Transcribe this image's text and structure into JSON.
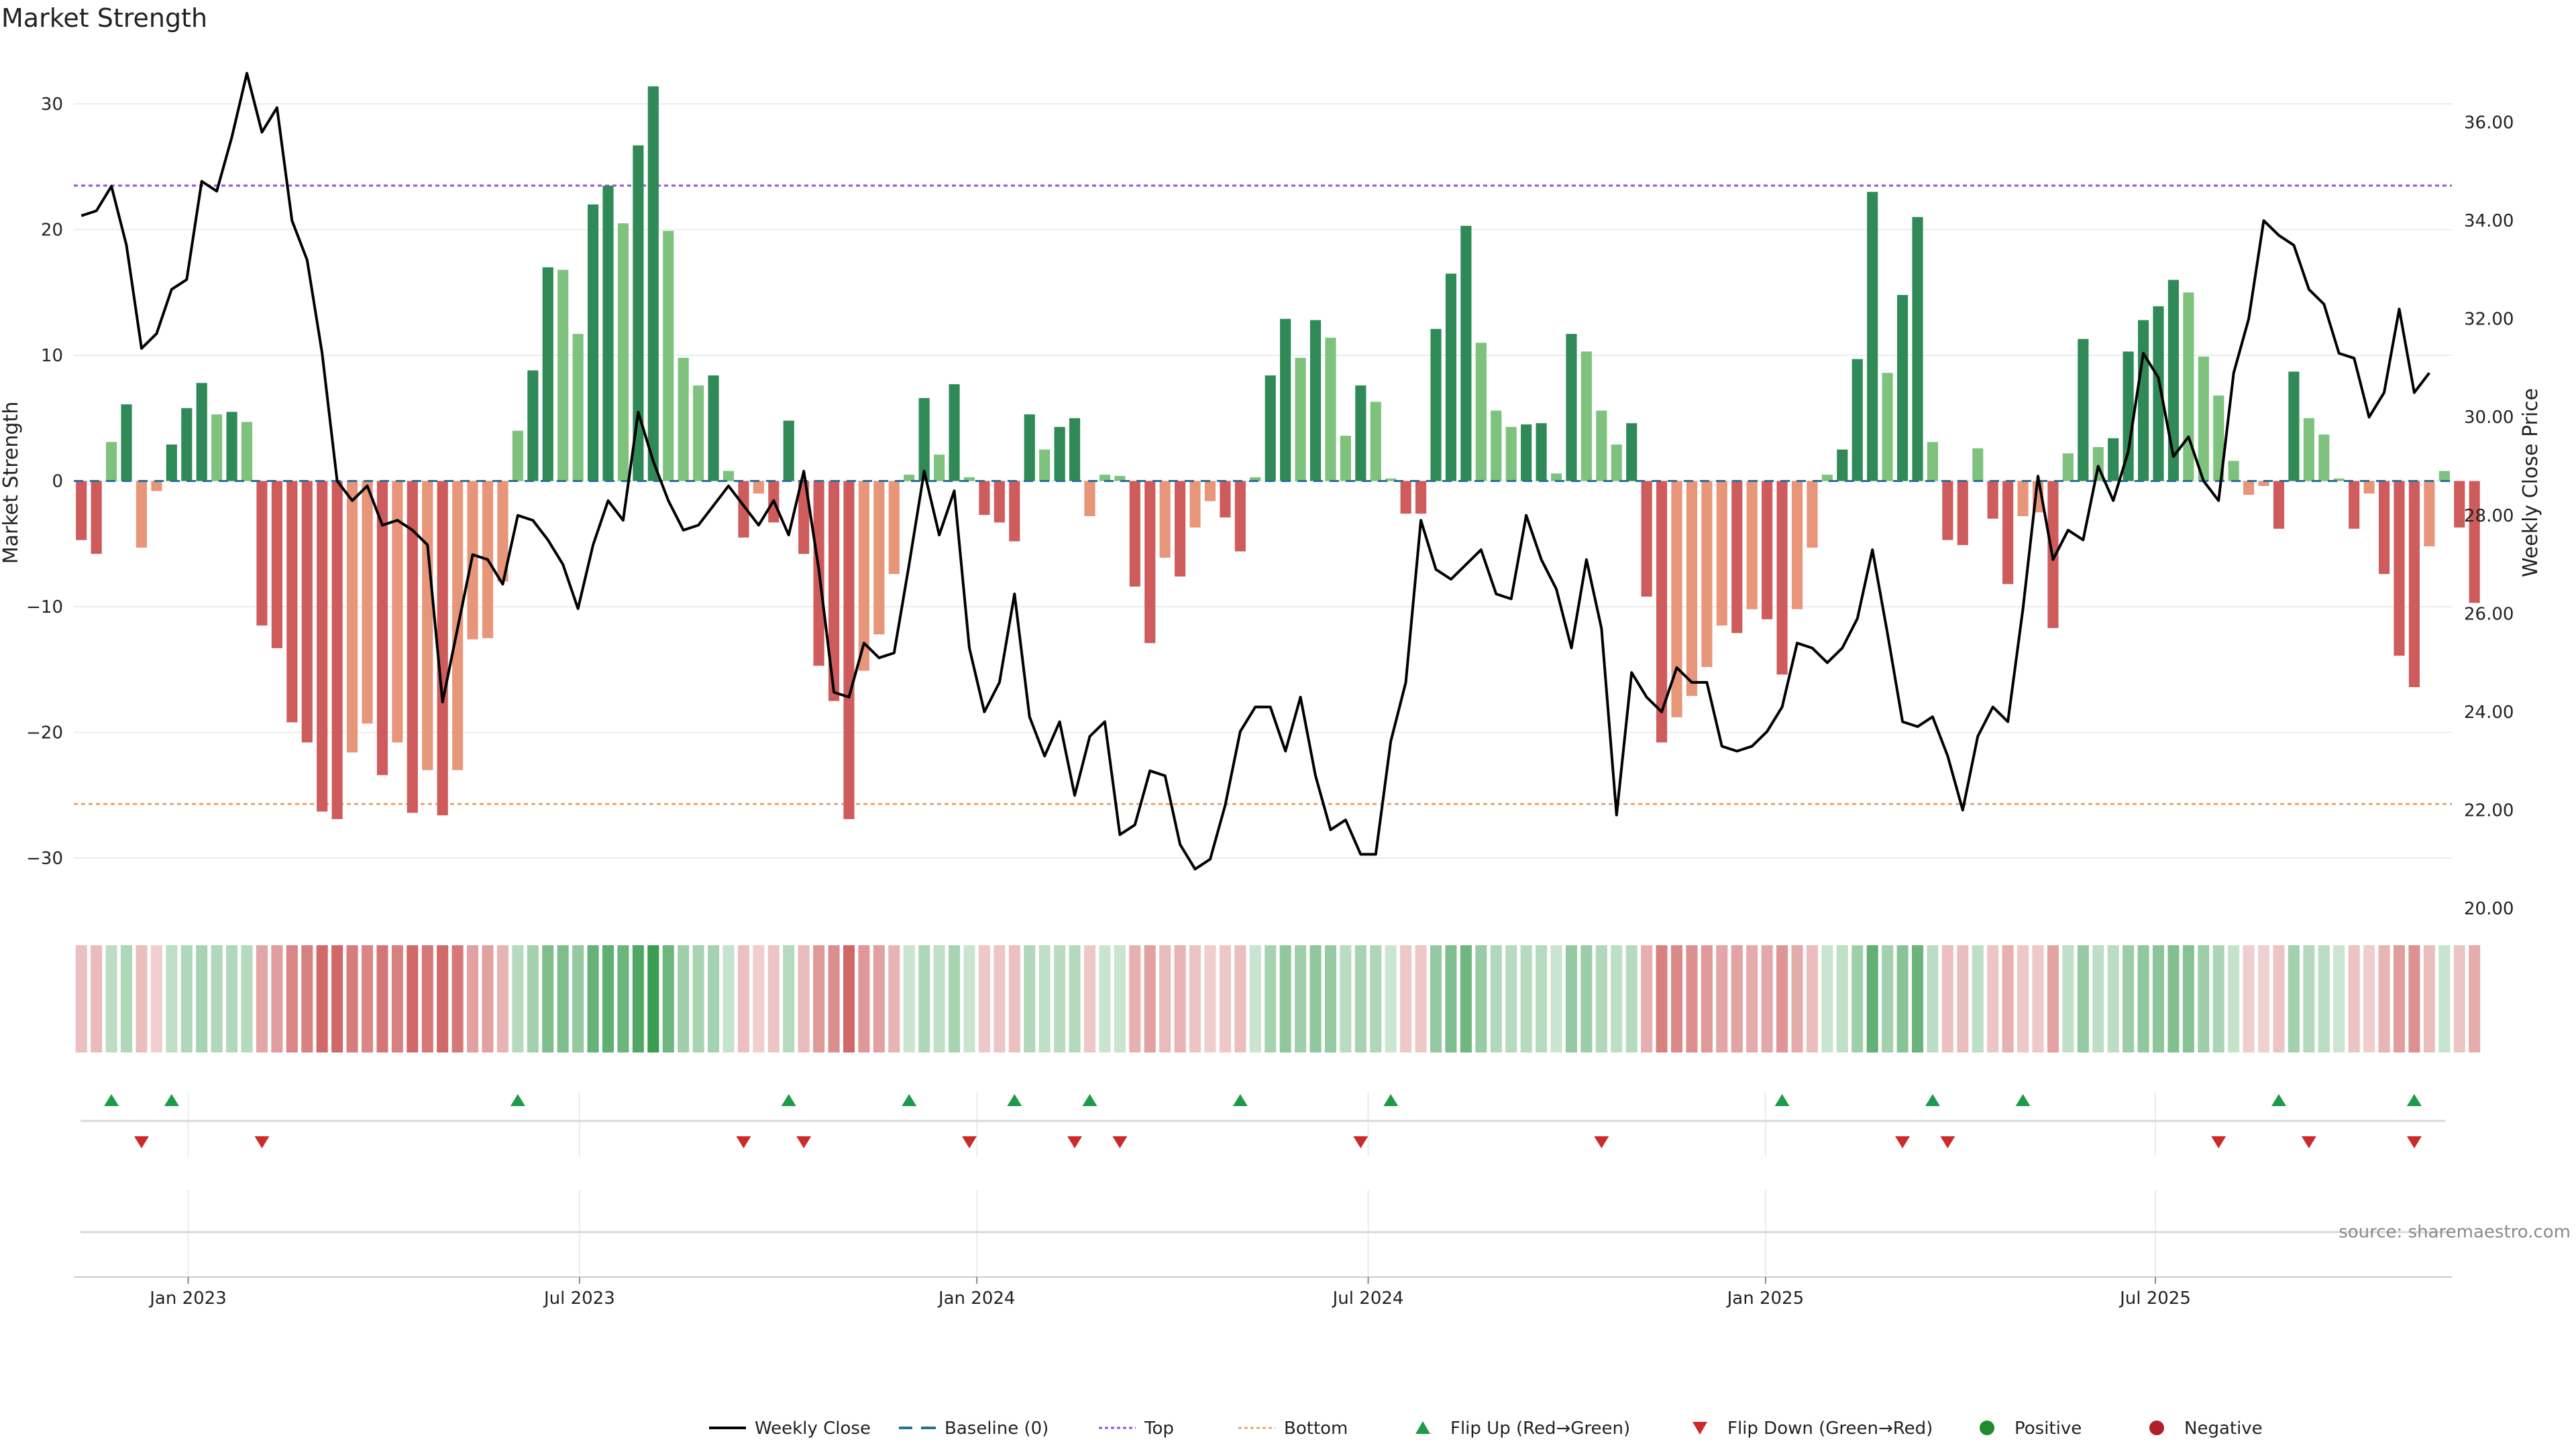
{
  "chart_data": {
    "type": "bar",
    "title": "Market Strength",
    "ylabel": "Market Strength",
    "y2label": "Weekly Close Price",
    "ylim": [
      -34,
      34
    ],
    "y2lim": [
      20,
      37.4
    ],
    "yticks": [
      30,
      20,
      10,
      0,
      -10,
      -20,
      -30
    ],
    "y2ticks": [
      "36.00",
      "34.00",
      "32.00",
      "30.00",
      "28.00",
      "26.00",
      "24.00",
      "22.00",
      "20.00"
    ],
    "top_level": 23.5,
    "bottom_level": -25.7,
    "start_date": "2022-11-13",
    "weeks": 158,
    "date_ticks": [
      {
        "label": "Jan 2023",
        "week": 7.6
      },
      {
        "label": "Jul 2023",
        "week": 33.6
      },
      {
        "label": "Jan 2024",
        "week": 60.0
      },
      {
        "label": "Jul 2024",
        "week": 86.0
      },
      {
        "label": "Jan 2025",
        "week": 112.4
      },
      {
        "label": "Jul 2025",
        "week": 138.3
      }
    ],
    "strength": [
      -4.7,
      -5.8,
      3.1,
      6.1,
      -5.3,
      -0.8,
      2.9,
      5.8,
      7.8,
      5.3,
      5.5,
      4.7,
      -11.5,
      -13.3,
      -19.2,
      -20.8,
      -26.3,
      -26.9,
      -21.6,
      -19.3,
      -23.4,
      -20.8,
      -26.4,
      -23.0,
      -26.6,
      -23.0,
      -12.6,
      -12.5,
      -8.0,
      4.0,
      8.8,
      17.0,
      16.8,
      11.7,
      22.0,
      23.5,
      20.5,
      26.7,
      31.4,
      19.9,
      9.8,
      7.6,
      8.4,
      0.8,
      -4.5,
      -1.0,
      -3.3,
      4.8,
      -5.8,
      -14.7,
      -17.5,
      -26.9,
      -15.1,
      -12.2,
      -7.4,
      0.5,
      6.6,
      2.1,
      7.7,
      0.3,
      -2.7,
      -3.3,
      -4.8,
      5.3,
      2.5,
      4.3,
      5.0,
      -2.8,
      0.5,
      0.4,
      -8.4,
      -12.9,
      -6.1,
      -7.6,
      -3.7,
      -1.6,
      -2.9,
      -5.6,
      0.3,
      8.4,
      12.9,
      9.8,
      12.8,
      11.4,
      3.6,
      7.6,
      6.3,
      0.2,
      -2.6,
      -2.6,
      12.1,
      16.5,
      20.3,
      11.0,
      5.6,
      4.3,
      4.5,
      4.6,
      0.6,
      11.7,
      10.3,
      5.6,
      2.9,
      4.6,
      -9.2,
      -20.8,
      -18.8,
      -17.1,
      -14.8,
      -11.5,
      -12.1,
      -10.2,
      -11.0,
      -15.4,
      -10.2,
      -5.3,
      0.5,
      2.5,
      9.7,
      23.0,
      8.6,
      14.8,
      21.0,
      3.1,
      -4.7,
      -5.1,
      2.6,
      -3.0,
      -8.2,
      -2.8,
      -2.5,
      -11.7,
      2.2,
      11.3,
      2.7,
      3.4,
      10.3,
      12.8,
      13.9,
      16.0,
      15.0,
      9.9,
      6.8,
      1.6,
      -1.1,
      -0.4,
      -3.8,
      8.7,
      5.0,
      3.7,
      0.2,
      -3.8,
      -1.0,
      -7.4,
      -13.9,
      -16.4,
      -5.2,
      0.8,
      -3.7,
      -9.7
    ],
    "weekly_close": [
      34.1,
      34.2,
      34.7,
      33.5,
      31.4,
      31.7,
      32.6,
      32.8,
      34.8,
      34.6,
      35.7,
      37.0,
      35.8,
      36.3,
      34.0,
      33.2,
      31.3,
      28.7,
      28.3,
      28.6,
      27.8,
      27.9,
      27.7,
      27.4,
      24.2,
      25.7,
      27.2,
      27.1,
      26.6,
      28.0,
      27.9,
      27.5,
      27.0,
      26.1,
      27.4,
      28.3,
      27.9,
      30.1,
      29.1,
      28.3,
      27.7,
      27.8,
      28.2,
      28.6,
      28.2,
      27.8,
      28.3,
      27.6,
      28.9,
      26.9,
      24.4,
      24.3,
      25.4,
      25.1,
      25.2,
      27.0,
      28.9,
      27.6,
      28.5,
      25.3,
      24.0,
      24.6,
      26.4,
      23.9,
      23.1,
      23.8,
      22.3,
      23.5,
      23.8,
      21.5,
      21.7,
      22.8,
      22.7,
      21.3,
      20.8,
      21.0,
      22.1,
      23.6,
      24.1,
      24.1,
      23.2,
      24.3,
      22.7,
      21.6,
      21.8,
      21.1,
      21.1,
      23.4,
      24.6,
      27.9,
      26.9,
      26.7,
      27.0,
      27.3,
      26.4,
      26.3,
      28.0,
      27.1,
      26.5,
      25.3,
      27.1,
      25.7,
      21.9,
      24.8,
      24.3,
      24.0,
      24.9,
      24.6,
      24.6,
      23.3,
      23.2,
      23.3,
      23.6,
      24.1,
      25.4,
      25.3,
      25.0,
      25.3,
      25.9,
      27.3,
      25.6,
      23.8,
      23.7,
      23.9,
      23.1,
      22.0,
      23.5,
      24.1,
      23.8,
      26.1,
      28.8,
      27.1,
      27.7,
      27.5,
      29.0,
      28.3,
      29.3,
      31.3,
      30.8,
      29.2,
      29.6,
      28.7,
      28.3,
      30.9,
      32.0,
      34.0,
      33.7,
      33.5,
      32.6,
      32.3,
      31.3,
      31.2,
      30.0,
      30.5,
      32.2,
      30.5,
      30.9
    ],
    "flip_up_weeks": [
      2,
      6,
      29,
      47,
      55,
      62,
      67,
      77,
      87,
      113,
      123,
      129,
      146,
      155
    ],
    "flip_down_weeks": [
      4,
      12,
      44,
      48,
      59,
      66,
      69,
      85,
      101,
      121,
      124,
      142,
      148,
      155
    ],
    "source": "source: sharemaestro.com",
    "legend": [
      {
        "label": "Weekly Close",
        "symbol": "line",
        "color": "#000000"
      },
      {
        "label": "Baseline (0)",
        "symbol": "dash",
        "color": "#2a6f97"
      },
      {
        "label": "Top",
        "symbol": "dot",
        "color": "#9b4fd6"
      },
      {
        "label": "Bottom",
        "symbol": "dot",
        "color": "#e8a770"
      },
      {
        "label": "Flip Up (Red→Green)",
        "symbol": "triangle-up",
        "color": "#1f9a4a"
      },
      {
        "label": "Flip Down (Green→Red)",
        "symbol": "triangle-down",
        "color": "#cc2a2a"
      },
      {
        "label": "Positive",
        "symbol": "circle",
        "color": "#218a2f"
      },
      {
        "label": "Negative",
        "symbol": "circle",
        "color": "#b0202a"
      }
    ],
    "colors": {
      "strong_positive": "#2f8a58",
      "weak_positive": "#7fc27e",
      "strong_negative": "#cf5c5c",
      "weak_negative": "#e8967a",
      "top_line": "#9b4fd6",
      "bottom_line": "#e8a770",
      "baseline": "#2a6f97",
      "grid": "#ececec"
    }
  }
}
